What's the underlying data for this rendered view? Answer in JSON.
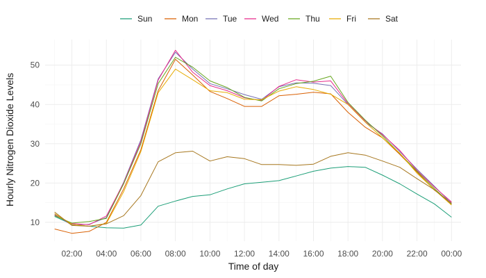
{
  "chart_data": {
    "type": "line",
    "title": "",
    "xlabel": "Time of day",
    "ylabel": "Hourly Nitrogen Dioxide Levels",
    "x": [
      "01:00",
      "02:00",
      "03:00",
      "04:00",
      "05:00",
      "06:00",
      "07:00",
      "08:00",
      "09:00",
      "10:00",
      "11:00",
      "12:00",
      "13:00",
      "14:00",
      "15:00",
      "16:00",
      "17:00",
      "18:00",
      "19:00",
      "20:00",
      "21:00",
      "22:00",
      "23:00",
      "00:00"
    ],
    "x_tick_labels": [
      "02:00",
      "04:00",
      "06:00",
      "08:00",
      "10:00",
      "12:00",
      "14:00",
      "16:00",
      "18:00",
      "20:00",
      "22:00",
      "00:00"
    ],
    "y_ticks": [
      10,
      20,
      30,
      40,
      50
    ],
    "ylim": [
      5.2,
      56.5
    ],
    "grid": true,
    "legend_position": "top",
    "series": [
      {
        "name": "Sun",
        "color": "#1b9e77",
        "values": [
          11.5,
          9.5,
          9.0,
          8.6,
          8.5,
          9.3,
          14.1,
          15.4,
          16.6,
          17.0,
          18.5,
          19.8,
          20.2,
          20.6,
          21.8,
          23.0,
          23.8,
          24.2,
          24.0,
          22.0,
          19.8,
          17.2,
          14.7,
          11.3
        ]
      },
      {
        "name": "Mon",
        "color": "#d95f02",
        "values": [
          8.3,
          7.2,
          7.7,
          10.0,
          18.5,
          28.5,
          43.5,
          51.5,
          47.5,
          43.3,
          41.5,
          39.5,
          39.5,
          42.2,
          42.6,
          43.1,
          42.7,
          38.0,
          34.2,
          31.5,
          27.3,
          22.8,
          18.2,
          15.0
        ]
      },
      {
        "name": "Tue",
        "color": "#7570b3",
        "values": [
          12.0,
          9.3,
          9.5,
          11.2,
          20.2,
          31.0,
          46.5,
          53.3,
          49.0,
          45.3,
          44.0,
          42.5,
          41.3,
          44.5,
          45.5,
          45.4,
          44.8,
          40.0,
          35.5,
          32.5,
          28.0,
          23.5,
          19.2,
          14.8
        ]
      },
      {
        "name": "Wed",
        "color": "#e7298a",
        "values": [
          11.8,
          9.7,
          9.4,
          11.6,
          20.0,
          30.5,
          46.2,
          53.8,
          48.2,
          44.8,
          43.5,
          41.7,
          41.0,
          44.6,
          46.3,
          45.7,
          46.0,
          40.2,
          35.8,
          32.3,
          28.3,
          23.2,
          19.0,
          15.2
        ]
      },
      {
        "name": "Thu",
        "color": "#66a61e",
        "values": [
          11.7,
          9.8,
          10.2,
          11.0,
          19.8,
          30.0,
          45.3,
          52.0,
          49.5,
          46.0,
          44.3,
          41.8,
          40.9,
          44.0,
          45.3,
          45.9,
          47.2,
          40.5,
          36.0,
          32.0,
          27.5,
          23.0,
          18.6,
          14.6
        ]
      },
      {
        "name": "Fri",
        "color": "#e6ab02",
        "values": [
          12.2,
          9.5,
          9.0,
          9.7,
          17.8,
          28.0,
          43.0,
          49.0,
          46.3,
          43.5,
          43.0,
          41.3,
          41.2,
          43.4,
          44.5,
          43.8,
          42.6,
          40.0,
          35.5,
          31.5,
          27.6,
          22.5,
          18.3,
          14.4
        ]
      },
      {
        "name": "Sat",
        "color": "#a6761d",
        "values": [
          12.6,
          9.2,
          9.0,
          9.6,
          11.7,
          16.8,
          25.4,
          27.7,
          28.1,
          25.6,
          26.7,
          26.2,
          24.7,
          24.7,
          24.5,
          24.8,
          26.8,
          27.7,
          27.1,
          25.6,
          24.0,
          21.1,
          18.3,
          14.7
        ]
      }
    ]
  }
}
